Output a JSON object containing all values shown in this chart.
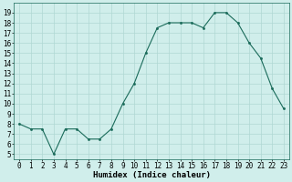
{
  "x": [
    0,
    1,
    2,
    3,
    4,
    5,
    6,
    7,
    8,
    9,
    10,
    11,
    12,
    13,
    14,
    15,
    16,
    17,
    18,
    19,
    20,
    21,
    22,
    23
  ],
  "y": [
    8.0,
    7.5,
    7.5,
    5.0,
    7.5,
    7.5,
    6.5,
    6.5,
    7.5,
    10.0,
    12.0,
    15.0,
    17.5,
    18.0,
    18.0,
    18.0,
    17.5,
    19.0,
    19.0,
    18.0,
    16.0,
    14.5,
    11.5,
    9.5
  ],
  "xlabel": "Humidex (Indice chaleur)",
  "xlim": [
    -0.5,
    23.5
  ],
  "ylim": [
    4.5,
    20.0
  ],
  "yticks": [
    5,
    6,
    7,
    8,
    9,
    10,
    11,
    12,
    13,
    14,
    15,
    16,
    17,
    18,
    19
  ],
  "xticks": [
    0,
    1,
    2,
    3,
    4,
    5,
    6,
    7,
    8,
    9,
    10,
    11,
    12,
    13,
    14,
    15,
    16,
    17,
    18,
    19,
    20,
    21,
    22,
    23
  ],
  "line_color": "#1a6b5a",
  "bg_color": "#d0eeeb",
  "grid_color": "#b0d8d4",
  "label_fontsize": 6.5,
  "tick_fontsize": 5.5
}
